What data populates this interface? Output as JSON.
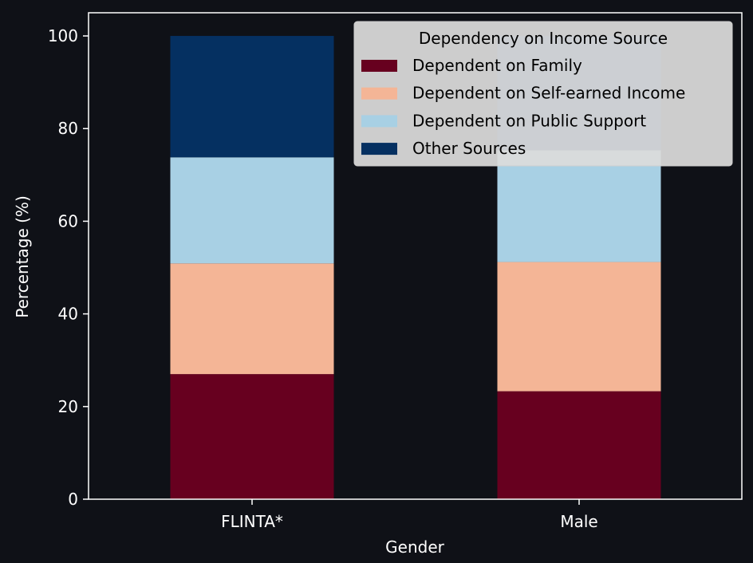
{
  "chart_data": {
    "type": "bar",
    "stacked": true,
    "title": "",
    "xlabel": "Gender",
    "ylabel": "Percentage (%)",
    "categories": [
      "FLINTA*",
      "Male"
    ],
    "ylim": [
      0,
      105
    ],
    "yticks": [
      0,
      20,
      40,
      60,
      80,
      100
    ],
    "grid": false,
    "legend": {
      "title": "Dependency on Income Source",
      "placement": "top-right"
    },
    "series": [
      {
        "name": "Dependent on Family",
        "color": "#67001f",
        "values": [
          27.0,
          23.3
        ]
      },
      {
        "name": "Dependent on Self-earned Income",
        "color": "#f4b596",
        "values": [
          23.9,
          27.9
        ]
      },
      {
        "name": "Dependent on Public Support",
        "color": "#a8d0e4",
        "values": [
          22.9,
          24.1
        ]
      },
      {
        "name": "Other Sources",
        "color": "#053061",
        "values": [
          26.2,
          24.7
        ]
      }
    ]
  },
  "colors": {
    "background": "#0f1117",
    "axes": "#ffffff",
    "text": "#ffffff",
    "legend_background": "#dcdcdc"
  }
}
